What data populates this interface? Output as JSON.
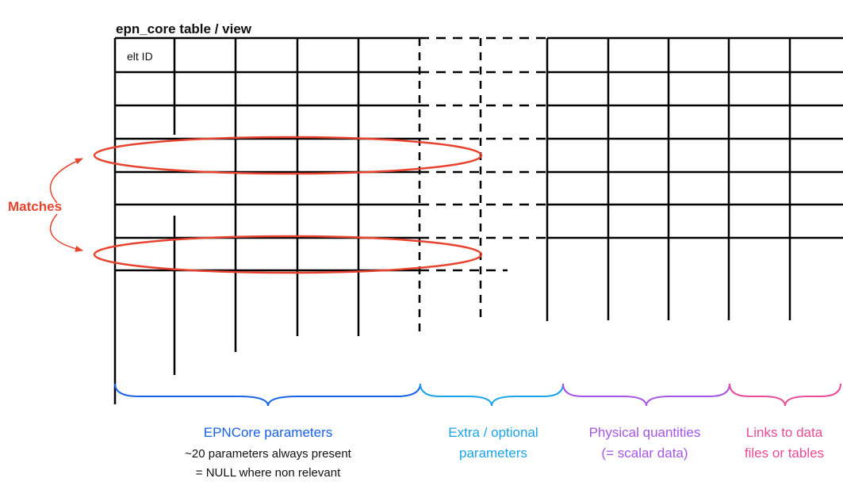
{
  "title": "epn_core table / view",
  "first_cell": "elt ID",
  "matches_label": "Matches",
  "colors": {
    "grid": "#000000",
    "highlight": "#e8432e",
    "matches": "#e8432e",
    "epncore": "#1760e8",
    "extra": "#1ba3ea",
    "physical": "#a555e6",
    "links": "#ea4a96"
  },
  "sections": [
    {
      "name": "epncore",
      "lines": [
        "EPNCore parameters",
        "~20 parameters always present",
        "= NULL where non relevant"
      ]
    },
    {
      "name": "extra",
      "lines": [
        "Extra / optional",
        "parameters"
      ]
    },
    {
      "name": "physical",
      "lines": [
        "Physical quantities",
        "(= scalar data)"
      ]
    },
    {
      "name": "links",
      "lines": [
        "Links to data",
        "files or tables"
      ]
    }
  ]
}
